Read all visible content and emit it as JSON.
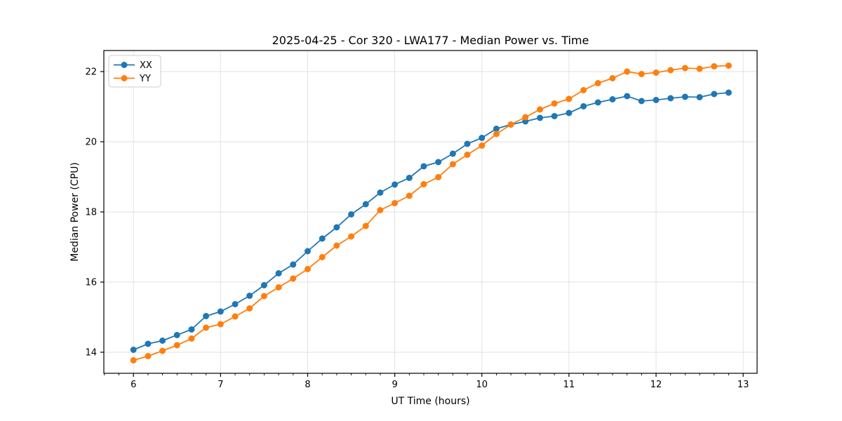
{
  "figure": {
    "background": "#ffffff",
    "plot_background": "#ffffff",
    "spine_color": "#000000"
  },
  "chart_data": {
    "type": "line",
    "title": "2025-04-25 - Cor 320 - LWA177 - Median Power vs. Time",
    "xlabel": "UT Time (hours)",
    "ylabel": "Median Power (CPU)",
    "xlim": [
      5.66,
      13.16
    ],
    "ylim": [
      13.4,
      22.6
    ],
    "xticks": [
      6,
      7,
      8,
      9,
      10,
      11,
      12,
      13
    ],
    "yticks": [
      14,
      16,
      18,
      20,
      22
    ],
    "x_minor_step": 0.16667,
    "grid": true,
    "grid_color": "#e0e0e0",
    "legend": {
      "location": "upper-left",
      "labels": [
        "XX",
        "YY"
      ]
    },
    "x": [
      6.0,
      6.167,
      6.333,
      6.5,
      6.667,
      6.833,
      7.0,
      7.167,
      7.333,
      7.5,
      7.667,
      7.833,
      8.0,
      8.167,
      8.333,
      8.5,
      8.667,
      8.833,
      9.0,
      9.167,
      9.333,
      9.5,
      9.667,
      9.833,
      10.0,
      10.167,
      10.333,
      10.5,
      10.667,
      10.833,
      11.0,
      11.167,
      11.333,
      11.5,
      11.667,
      11.833,
      12.0,
      12.167,
      12.333,
      12.5,
      12.667,
      12.833
    ],
    "series": [
      {
        "name": "XX",
        "color": "#1f77b4",
        "marker": "circle",
        "values": [
          14.07,
          14.24,
          14.33,
          14.49,
          14.65,
          15.03,
          15.16,
          15.37,
          15.61,
          15.91,
          16.25,
          16.5,
          16.88,
          17.24,
          17.56,
          17.93,
          18.22,
          18.55,
          18.78,
          18.97,
          19.3,
          19.42,
          19.66,
          19.94,
          20.11,
          20.37,
          20.49,
          20.58,
          20.68,
          20.73,
          20.82,
          21.01,
          21.12,
          21.21,
          21.3,
          21.16,
          21.19,
          21.24,
          21.28,
          21.27,
          21.36,
          21.4
        ]
      },
      {
        "name": "YY",
        "color": "#ff7f0e",
        "marker": "circle",
        "values": [
          13.77,
          13.89,
          14.04,
          14.2,
          14.39,
          14.7,
          14.8,
          15.02,
          15.25,
          15.6,
          15.85,
          16.1,
          16.37,
          16.71,
          17.04,
          17.3,
          17.6,
          18.05,
          18.25,
          18.46,
          18.79,
          18.99,
          19.36,
          19.63,
          19.89,
          20.22,
          20.49,
          20.7,
          20.92,
          21.09,
          21.22,
          21.47,
          21.67,
          21.81,
          22.0,
          21.93,
          21.97,
          22.04,
          22.1,
          22.08,
          22.15,
          22.17
        ]
      }
    ]
  }
}
